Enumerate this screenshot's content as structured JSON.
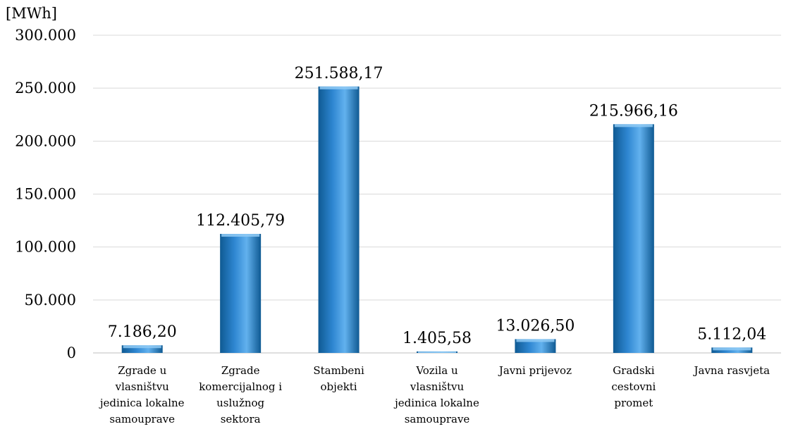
{
  "chart_data": {
    "type": "bar",
    "unit_label": "[MWh]",
    "categories": [
      [
        "Zgrade u",
        "vlasništvu",
        "jedinica lokalne",
        "samouprave"
      ],
      [
        "Zgrade",
        "komercijalnog i",
        "uslužnog",
        "sektora"
      ],
      [
        "Stambeni",
        "objekti"
      ],
      [
        "Vozila u",
        "vlasništvu",
        "jedinica lokalne",
        "samouprave"
      ],
      [
        "Javni prijevoz"
      ],
      [
        "Gradski",
        "cestovni",
        "promet"
      ],
      [
        "Javna rasvjeta"
      ]
    ],
    "values": [
      7186.2,
      112405.79,
      251588.17,
      1405.58,
      13026.5,
      215966.16,
      5112.04
    ],
    "value_labels": [
      "7.186,20",
      "112.405,79",
      "251.588,17",
      "1.405,58",
      "13.026,50",
      "215.966,16",
      "5.112,04"
    ],
    "yticks": [
      0,
      50000,
      100000,
      150000,
      200000,
      250000,
      300000
    ],
    "ytick_labels": [
      "0",
      "50.000",
      "100.000",
      "150.000",
      "200.000",
      "250.000",
      "300.000"
    ],
    "ylim": [
      0,
      300000
    ],
    "grid": true,
    "legend": "none",
    "colors": {
      "bar_dark": "#0f5a93",
      "bar_mid": "#2e86d1",
      "bar_light": "#62b1ee",
      "bar_top": "#8fcaf5"
    }
  }
}
